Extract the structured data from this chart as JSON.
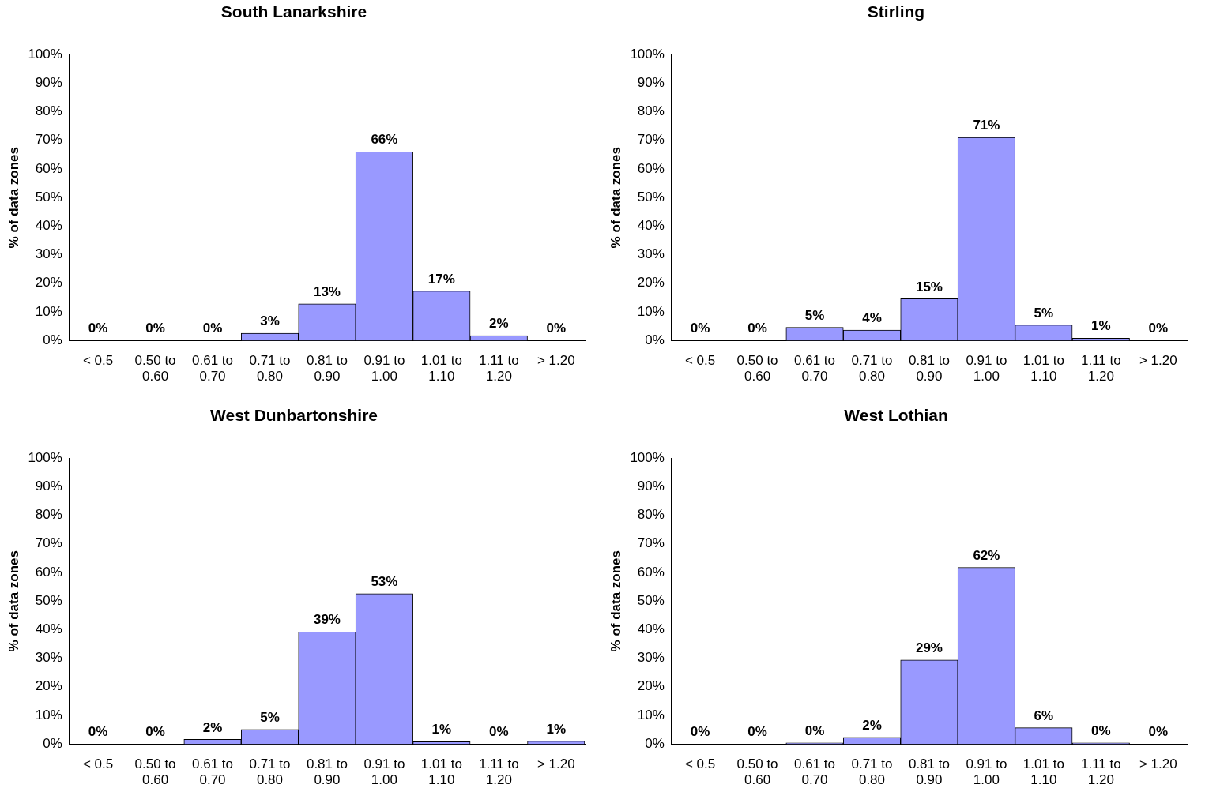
{
  "chart_data": [
    {
      "type": "bar",
      "title": "South Lanarkshire",
      "ylabel": "% of data zones",
      "categories": [
        "< 0.5",
        "0.50 to 0.60",
        "0.61 to 0.70",
        "0.71 to 0.80",
        "0.81 to 0.90",
        "0.91 to 1.00",
        "1.01 to 1.10",
        "1.11 to 1.20",
        "> 1.20"
      ],
      "color": "#9999ff",
      "values": [
        0,
        0,
        0,
        2.5,
        12.8,
        66,
        17.3,
        1.7,
        0
      ],
      "value_labels": [
        "0%",
        "0%",
        "0%",
        "3%",
        "13%",
        "66%",
        "17%",
        "2%",
        "0%"
      ],
      "ylim": [
        0,
        100
      ],
      "yticks": [
        {
          "value": 0,
          "label": "0%"
        },
        {
          "value": 10,
          "label": "10%"
        },
        {
          "value": 20,
          "label": "20%"
        },
        {
          "value": 30,
          "label": "30%"
        },
        {
          "value": 40,
          "label": "40%"
        },
        {
          "value": 50,
          "label": "50%"
        },
        {
          "value": 60,
          "label": "60%"
        },
        {
          "value": 70,
          "label": "70%"
        },
        {
          "value": 80,
          "label": "80%"
        },
        {
          "value": 90,
          "label": "90%"
        },
        {
          "value": 100,
          "label": "100%"
        }
      ]
    },
    {
      "type": "bar",
      "title": "Stirling",
      "ylabel": "% of data zones",
      "categories": [
        "< 0.5",
        "0.50 to 0.60",
        "0.61 to 0.70",
        "0.71 to 0.80",
        "0.81 to 0.90",
        "0.91 to 1.00",
        "1.01 to 1.10",
        "1.11 to 1.20",
        "> 1.20"
      ],
      "color": "#9999ff",
      "values": [
        0,
        0,
        4.6,
        3.6,
        14.6,
        71,
        5.4,
        0.8,
        0
      ],
      "value_labels": [
        "0%",
        "0%",
        "5%",
        "4%",
        "15%",
        "71%",
        "5%",
        "1%",
        "0%"
      ],
      "ylim": [
        0,
        100
      ],
      "yticks": [
        {
          "value": 0,
          "label": "0%"
        },
        {
          "value": 10,
          "label": "10%"
        },
        {
          "value": 20,
          "label": "20%"
        },
        {
          "value": 30,
          "label": "30%"
        },
        {
          "value": 40,
          "label": "40%"
        },
        {
          "value": 50,
          "label": "50%"
        },
        {
          "value": 60,
          "label": "60%"
        },
        {
          "value": 70,
          "label": "70%"
        },
        {
          "value": 80,
          "label": "80%"
        },
        {
          "value": 90,
          "label": "90%"
        },
        {
          "value": 100,
          "label": "100%"
        }
      ]
    },
    {
      "type": "bar",
      "title": "West Dunbartonshire",
      "ylabel": "% of data zones",
      "categories": [
        "< 0.5",
        "0.50 to 0.60",
        "0.61 to 0.70",
        "0.71 to 0.80",
        "0.81 to 0.90",
        "0.91 to 1.00",
        "1.01 to 1.10",
        "1.11 to 1.20",
        "> 1.20"
      ],
      "color": "#9999ff",
      "values": [
        0,
        0,
        1.6,
        5.1,
        39.2,
        52.6,
        0.8,
        0,
        1
      ],
      "value_labels": [
        "0%",
        "0%",
        "2%",
        "5%",
        "39%",
        "53%",
        "1%",
        "0%",
        "1%"
      ],
      "ylim": [
        0,
        100
      ],
      "yticks": [
        {
          "value": 0,
          "label": "0%"
        },
        {
          "value": 10,
          "label": "10%"
        },
        {
          "value": 20,
          "label": "20%"
        },
        {
          "value": 30,
          "label": "30%"
        },
        {
          "value": 40,
          "label": "40%"
        },
        {
          "value": 50,
          "label": "50%"
        },
        {
          "value": 60,
          "label": "60%"
        },
        {
          "value": 70,
          "label": "70%"
        },
        {
          "value": 80,
          "label": "80%"
        },
        {
          "value": 90,
          "label": "90%"
        },
        {
          "value": 100,
          "label": "100%"
        }
      ]
    },
    {
      "type": "bar",
      "title": "West Lothian",
      "ylabel": "% of data zones",
      "categories": [
        "< 0.5",
        "0.50 to 0.60",
        "0.61 to 0.70",
        "0.71 to 0.80",
        "0.81 to 0.90",
        "0.91 to 1.00",
        "1.01 to 1.10",
        "1.11 to 1.20",
        "> 1.20"
      ],
      "color": "#9999ff",
      "values": [
        0,
        0,
        0.4,
        2.3,
        29.4,
        61.8,
        5.7,
        0.4,
        0
      ],
      "value_labels": [
        "0%",
        "0%",
        "0%",
        "2%",
        "29%",
        "62%",
        "6%",
        "0%",
        "0%"
      ],
      "ylim": [
        0,
        100
      ],
      "yticks": [
        {
          "value": 0,
          "label": "0%"
        },
        {
          "value": 10,
          "label": "10%"
        },
        {
          "value": 20,
          "label": "20%"
        },
        {
          "value": 30,
          "label": "30%"
        },
        {
          "value": 40,
          "label": "40%"
        },
        {
          "value": 50,
          "label": "50%"
        },
        {
          "value": 60,
          "label": "60%"
        },
        {
          "value": 70,
          "label": "70%"
        },
        {
          "value": 80,
          "label": "80%"
        },
        {
          "value": 90,
          "label": "90%"
        },
        {
          "value": 100,
          "label": "100%"
        }
      ]
    }
  ]
}
